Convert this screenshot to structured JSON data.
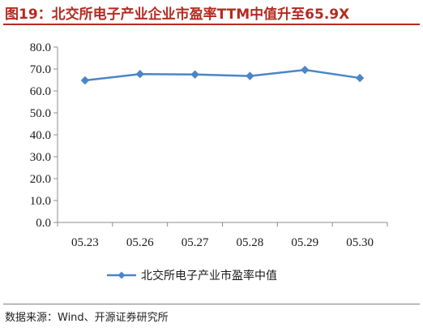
{
  "title": "图19：北交所电子产业企业市盈率TTM中值升至65.9X",
  "source": "数据来源：Wind、开源证券研究所",
  "colors": {
    "accent": "#b32b20",
    "series": "#4a86c8"
  },
  "chart_data": {
    "type": "line",
    "title": "图19：北交所电子产业企业市盈率TTM中值升至65.9X",
    "categories": [
      "05.23",
      "05.26",
      "05.27",
      "05.28",
      "05.29",
      "05.30"
    ],
    "series": [
      {
        "name": "北交所电子产业市盈率中值",
        "values": [
          64.8,
          67.7,
          67.5,
          66.8,
          69.6,
          65.9
        ],
        "marker": "diamond"
      }
    ],
    "yticks": [
      "0.0",
      "10.0",
      "20.0",
      "30.0",
      "40.0",
      "50.0",
      "60.0",
      "70.0",
      "80.0"
    ],
    "ylim": [
      0,
      80
    ],
    "xlabel": "",
    "ylabel": "",
    "grid": false,
    "legend": "bottom"
  }
}
